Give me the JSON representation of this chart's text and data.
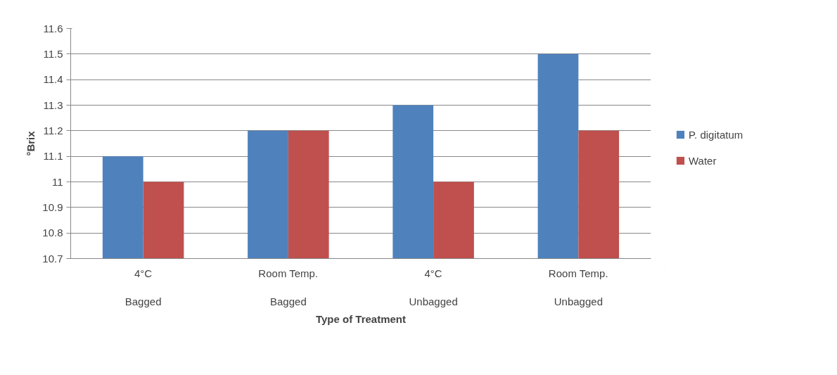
{
  "chart_data": {
    "type": "bar",
    "xlabel": "Type of Treatment",
    "ylabel": "°Brix",
    "categories": [
      "4°C\nBagged",
      "Room Temp.\nBagged",
      "4°C\nUnbagged",
      "Room Temp.\nUnbagged"
    ],
    "series": [
      {
        "name": "P. digitatum",
        "color": "#4f81bd",
        "values": [
          11.1,
          11.2,
          11.3,
          11.5
        ]
      },
      {
        "name": "Water",
        "color": "#c0504d",
        "values": [
          11.0,
          11.2,
          11.0,
          11.2
        ]
      }
    ],
    "ylim": [
      10.7,
      11.6
    ],
    "yticks": [
      10.7,
      10.8,
      10.9,
      11,
      11.1,
      11.2,
      11.3,
      11.4,
      11.5,
      11.6
    ],
    "grid": "y",
    "legend": "right"
  }
}
